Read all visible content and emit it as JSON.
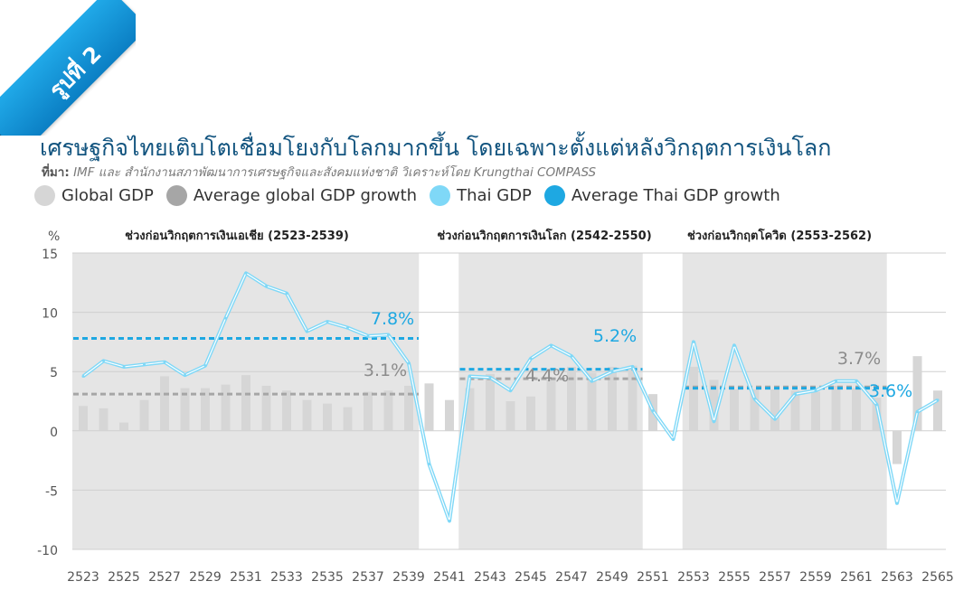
{
  "badge": {
    "label": "รูปที่ 2"
  },
  "header": {
    "title": "เศรษฐกิจไทยเติบโตเชื่อมโยงกับโลกมากขึ้น โดยเฉพาะตั้งแต่หลังวิกฤตการเงินโลก",
    "source_label": "ที่มา:",
    "source_text": " IMF และ สำนักงานสภาพัฒนาการเศรษฐกิจและสังคมแห่งชาติ วิเคราะห์โดย Krungthai COMPASS"
  },
  "colors": {
    "global_gdp": "#d6d6d6",
    "avg_global": "#a6a6a6",
    "thai_gdp": "#7fd8f7",
    "avg_thai": "#1ea8e2",
    "shade": "#e5e5e5",
    "title": "#12547f"
  },
  "legend": [
    {
      "label": "Global GDP",
      "color": "#d6d6d6"
    },
    {
      "label": "Average global GDP growth",
      "color": "#a6a6a6"
    },
    {
      "label": "Thai GDP",
      "color": "#7fd8f7"
    },
    {
      "label": "Average Thai GDP growth",
      "color": "#1ea8e2"
    }
  ],
  "chart_data": {
    "type": "bar",
    "ylabel": "%",
    "ylim": [
      -10,
      15
    ],
    "yticks": [
      15,
      10,
      5,
      0,
      -5,
      -10
    ],
    "grid": true,
    "x": [
      2523,
      2524,
      2525,
      2526,
      2527,
      2528,
      2529,
      2530,
      2531,
      2532,
      2533,
      2534,
      2535,
      2536,
      2537,
      2538,
      2539,
      2540,
      2541,
      2542,
      2543,
      2544,
      2545,
      2546,
      2547,
      2548,
      2549,
      2550,
      2551,
      2552,
      2553,
      2554,
      2555,
      2556,
      2557,
      2558,
      2559,
      2560,
      2561,
      2562,
      2563,
      2564,
      2565
    ],
    "xtick_labels": [
      "2523",
      "2525",
      "2527",
      "2529",
      "2531",
      "2533",
      "2535",
      "2537",
      "2539",
      "2541",
      "2543",
      "2545",
      "2547",
      "2549",
      "2551",
      "2553",
      "2555",
      "2557",
      "2559",
      "2561",
      "2563",
      "2565"
    ],
    "series": [
      {
        "name": "Global GDP",
        "kind": "bar",
        "values": [
          2.1,
          1.9,
          0.7,
          2.6,
          4.6,
          3.6,
          3.6,
          3.9,
          4.7,
          3.8,
          3.4,
          2.6,
          2.3,
          2.0,
          3.3,
          3.4,
          3.8,
          4.0,
          2.6,
          3.6,
          4.8,
          2.5,
          2.9,
          4.3,
          5.4,
          4.9,
          5.4,
          5.5,
          3.1,
          -0.1,
          5.4,
          4.3,
          3.5,
          3.5,
          3.5,
          3.4,
          3.3,
          3.8,
          3.6,
          2.8,
          -2.8,
          6.3,
          3.4
        ]
      },
      {
        "name": "Thai GDP",
        "kind": "line",
        "values": [
          4.6,
          5.9,
          5.4,
          5.6,
          5.8,
          4.7,
          5.5,
          9.5,
          13.3,
          12.2,
          11.6,
          8.4,
          9.2,
          8.7,
          8.0,
          8.1,
          5.7,
          -2.8,
          -7.6,
          4.6,
          4.5,
          3.4,
          6.1,
          7.2,
          6.3,
          4.2,
          5.0,
          5.4,
          1.7,
          -0.7,
          7.5,
          0.8,
          7.2,
          2.7,
          1.0,
          3.1,
          3.4,
          4.2,
          4.2,
          2.2,
          -6.1,
          1.6,
          2.6
        ]
      }
    ],
    "periods": [
      {
        "label": "ช่วงก่อนวิกฤตการเงินเอเชีย (2523-2539)",
        "start": 2523,
        "end": 2539,
        "avg_thai": 7.8,
        "avg_thai_label": "7.8%",
        "avg_global": 3.1,
        "avg_global_label": "3.1%"
      },
      {
        "label": "ช่วงก่อนวิกฤตการเงินโลก (2542-2550)",
        "start": 2542,
        "end": 2550,
        "avg_thai": 5.2,
        "avg_thai_label": "5.2%",
        "avg_global": 4.4,
        "avg_global_label": "4.4%"
      },
      {
        "label": "ช่วงก่อนวิกฤตโควิด (2553-2562)",
        "start": 2553,
        "end": 2562,
        "avg_thai": 3.6,
        "avg_thai_label": "3.6%",
        "avg_global": 3.7,
        "avg_global_label": "3.7%"
      }
    ]
  }
}
